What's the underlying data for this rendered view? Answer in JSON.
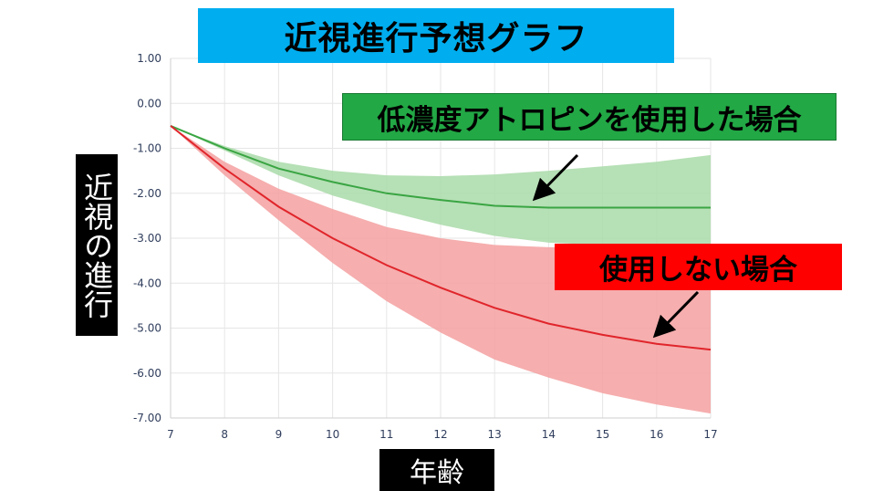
{
  "title": "近視進行予想グラフ",
  "ylabel": "近視の進行",
  "xlabel": "年齢",
  "annotations": {
    "green": "低濃度アトロピンを使用した場合",
    "red": "使用しない場合"
  },
  "colors": {
    "title_bg": "#00aeef",
    "green_line": "#3aa543",
    "green_band": "#a9dba9",
    "red_line": "#e0252b",
    "red_band": "#f4a0a0",
    "green_anno_bg": "#22a845",
    "red_anno_bg": "#ff0000"
  },
  "chart_data": {
    "type": "line",
    "x": [
      7,
      8,
      9,
      10,
      11,
      12,
      13,
      14,
      15,
      16,
      17
    ],
    "xticks": [
      "7",
      "8",
      "9",
      "10",
      "11",
      "12",
      "13",
      "14",
      "15",
      "16",
      "17"
    ],
    "yticks": [
      "1.00",
      "0.00",
      "-1.00",
      "-2.00",
      "-3.00",
      "-4.00",
      "-5.00",
      "-6.00",
      "-7.00"
    ],
    "ylim": [
      -7,
      1
    ],
    "xlim": [
      7,
      17
    ],
    "grid": true,
    "series": [
      {
        "key": "green",
        "values": [
          -0.5,
          -1.0,
          -1.45,
          -1.75,
          -2.0,
          -2.15,
          -2.28,
          -2.32,
          -2.32,
          -2.32,
          -2.32
        ],
        "band_upper": [
          -0.5,
          -0.95,
          -1.3,
          -1.5,
          -1.6,
          -1.62,
          -1.58,
          -1.5,
          -1.4,
          -1.3,
          -1.15
        ],
        "band_lower": [
          -0.5,
          -1.05,
          -1.6,
          -2.05,
          -2.4,
          -2.7,
          -2.95,
          -3.1,
          -3.15,
          -3.15,
          -3.15
        ]
      },
      {
        "key": "red",
        "values": [
          -0.5,
          -1.45,
          -2.3,
          -3.0,
          -3.6,
          -4.1,
          -4.55,
          -4.9,
          -5.15,
          -5.35,
          -5.48
        ],
        "band_upper": [
          -0.5,
          -1.3,
          -1.9,
          -2.35,
          -2.75,
          -3.0,
          -3.15,
          -3.2,
          -3.2,
          -3.2,
          -3.2
        ],
        "band_lower": [
          -0.5,
          -1.6,
          -2.6,
          -3.55,
          -4.4,
          -5.1,
          -5.7,
          -6.1,
          -6.45,
          -6.7,
          -6.9
        ]
      }
    ]
  }
}
